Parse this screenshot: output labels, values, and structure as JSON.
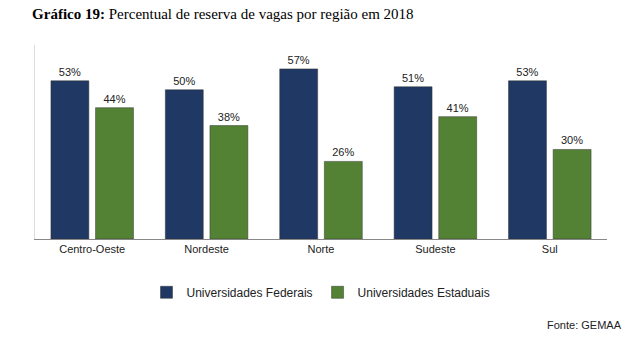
{
  "chart_data": {
    "type": "bar",
    "title": "Gráfico 19: Percentual de reserva de vagas por região em 2018",
    "categories": [
      "Centro-Oeste",
      "Nordeste",
      "Norte",
      "Sudeste",
      "Sul"
    ],
    "series": [
      {
        "name": "Universidades Federais",
        "color": "#1f3864",
        "values": [
          53,
          50,
          57,
          51,
          53
        ],
        "value_labels": [
          "53%",
          "50%",
          "57%",
          "51%",
          "53%"
        ]
      },
      {
        "name": "Universidades Estaduais",
        "color": "#548235",
        "values": [
          44,
          38,
          26,
          41,
          30
        ],
        "value_labels": [
          "44%",
          "38%",
          "26%",
          "41%",
          "30%"
        ]
      }
    ],
    "ylim": [
      0,
      65
    ],
    "yticks": [],
    "grid": false,
    "data_labels": true,
    "tick_labels": "x",
    "legend": "bottom",
    "annotations": [
      "Fonte: GEMAA"
    ]
  }
}
